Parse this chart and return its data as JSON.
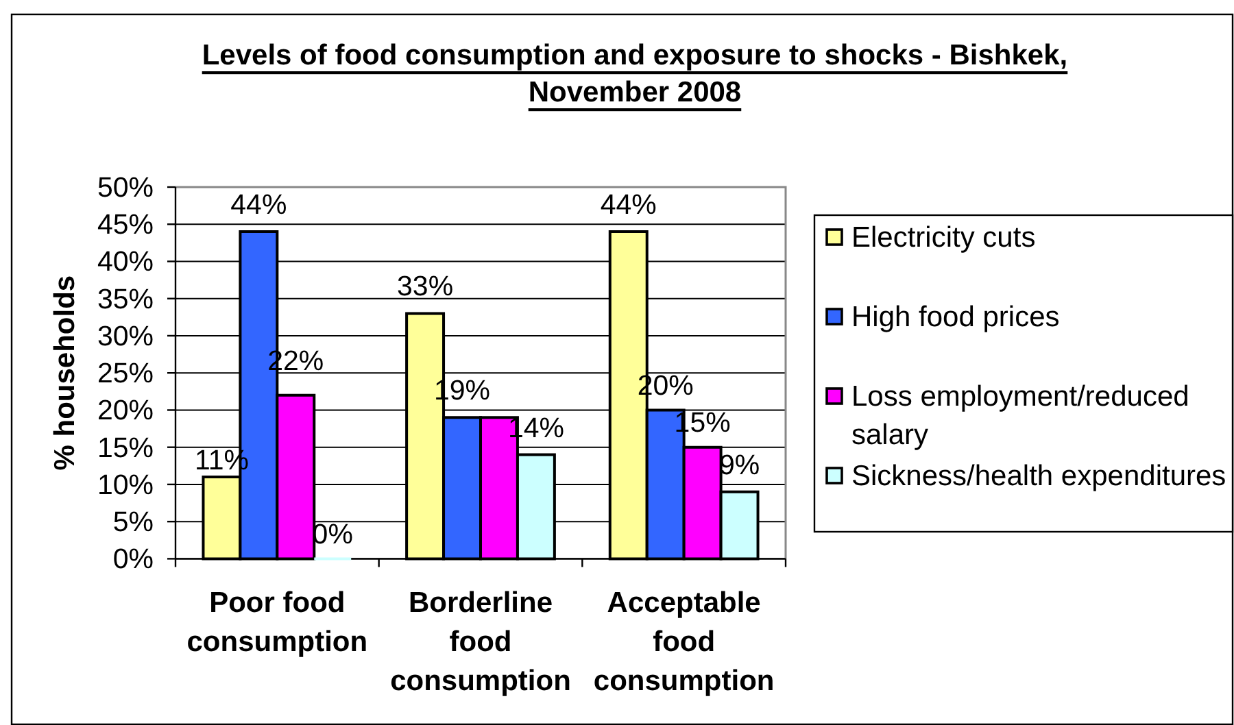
{
  "chart_data": {
    "type": "bar",
    "title": "Levels of food consumption and exposure to shocks - Bishkek, November 2008",
    "ylabel": "% households",
    "categories": [
      "Poor food consumption",
      "Borderline food consumption",
      "Acceptable food consumption"
    ],
    "series": [
      {
        "name": "Electricity cuts",
        "color": "#ffff99",
        "values": [
          11,
          33,
          44
        ],
        "value_labels": [
          "11%",
          "33%",
          "44%"
        ]
      },
      {
        "name": "High food prices",
        "color": "#3366ff",
        "values": [
          44,
          19,
          20
        ],
        "value_labels": [
          "44%",
          "19%",
          "20%"
        ]
      },
      {
        "name": "Loss employment/reduced salary",
        "color": "#ff00ff",
        "values": [
          22,
          19,
          15
        ],
        "value_labels": [
          "22%",
          null,
          "15%"
        ]
      },
      {
        "name": "Sickness/health expenditures",
        "color": "#ccffff",
        "values": [
          0,
          14,
          9
        ],
        "value_labels": [
          "0%",
          "14%",
          "9%"
        ]
      }
    ],
    "ylim": [
      0,
      50
    ],
    "yticks": [
      {
        "value": 0,
        "label": "0%"
      },
      {
        "value": 5,
        "label": "5%"
      },
      {
        "value": 10,
        "label": "10%"
      },
      {
        "value": 15,
        "label": "15%"
      },
      {
        "value": 20,
        "label": "20%"
      },
      {
        "value": 25,
        "label": "25%"
      },
      {
        "value": 30,
        "label": "30%"
      },
      {
        "value": 35,
        "label": "35%"
      },
      {
        "value": 40,
        "label": "40%"
      },
      {
        "value": 45,
        "label": "45%"
      },
      {
        "value": 50,
        "label": "50%"
      }
    ],
    "grid": "y",
    "legend": "right"
  }
}
